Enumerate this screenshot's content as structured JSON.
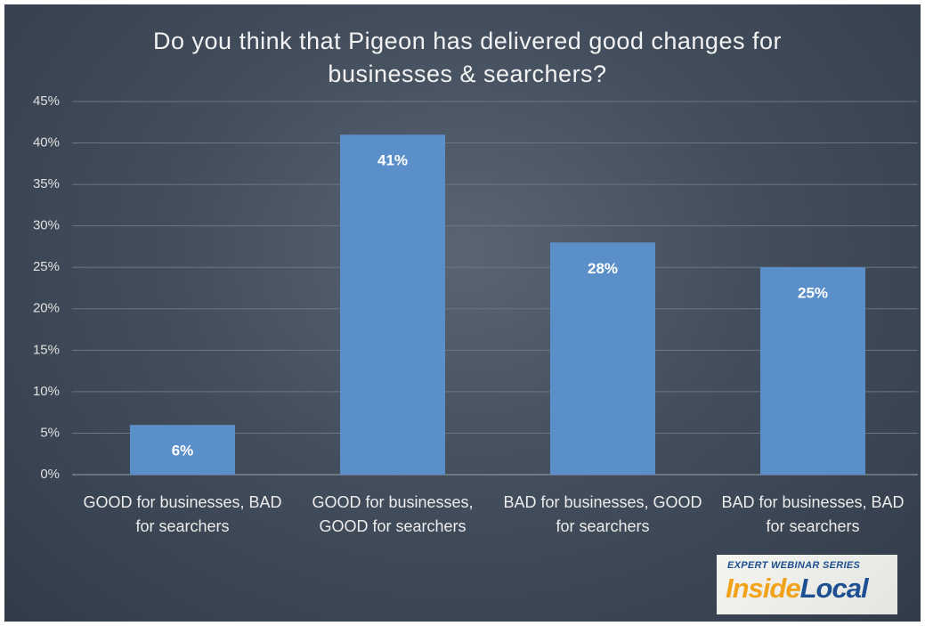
{
  "chart_data": {
    "type": "bar",
    "title": "Do you think that Pigeon has delivered good changes for businesses & searchers?",
    "categories": [
      "GOOD for businesses, BAD for searchers",
      "GOOD for businesses, GOOD for searchers",
      "BAD for businesses, GOOD for searchers",
      "BAD for businesses, BAD for searchers"
    ],
    "values": [
      6,
      41,
      28,
      25
    ],
    "value_labels": [
      "6%",
      "41%",
      "28%",
      "25%"
    ],
    "color": "#5b8fca",
    "ylim": [
      0,
      45
    ],
    "yticks": [
      {
        "value": 0,
        "label": "0%"
      },
      {
        "value": 5,
        "label": "5%"
      },
      {
        "value": 10,
        "label": "10%"
      },
      {
        "value": 15,
        "label": "15%"
      },
      {
        "value": 20,
        "label": "20%"
      },
      {
        "value": 25,
        "label": "25%"
      },
      {
        "value": 30,
        "label": "30%"
      },
      {
        "value": 35,
        "label": "35%"
      },
      {
        "value": 40,
        "label": "40%"
      },
      {
        "value": 45,
        "label": "45%"
      }
    ],
    "grid": true
  },
  "logo": {
    "tagline": "EXPERT WEBINAR SERIES",
    "name_parts": [
      "Inside",
      "Local"
    ]
  }
}
